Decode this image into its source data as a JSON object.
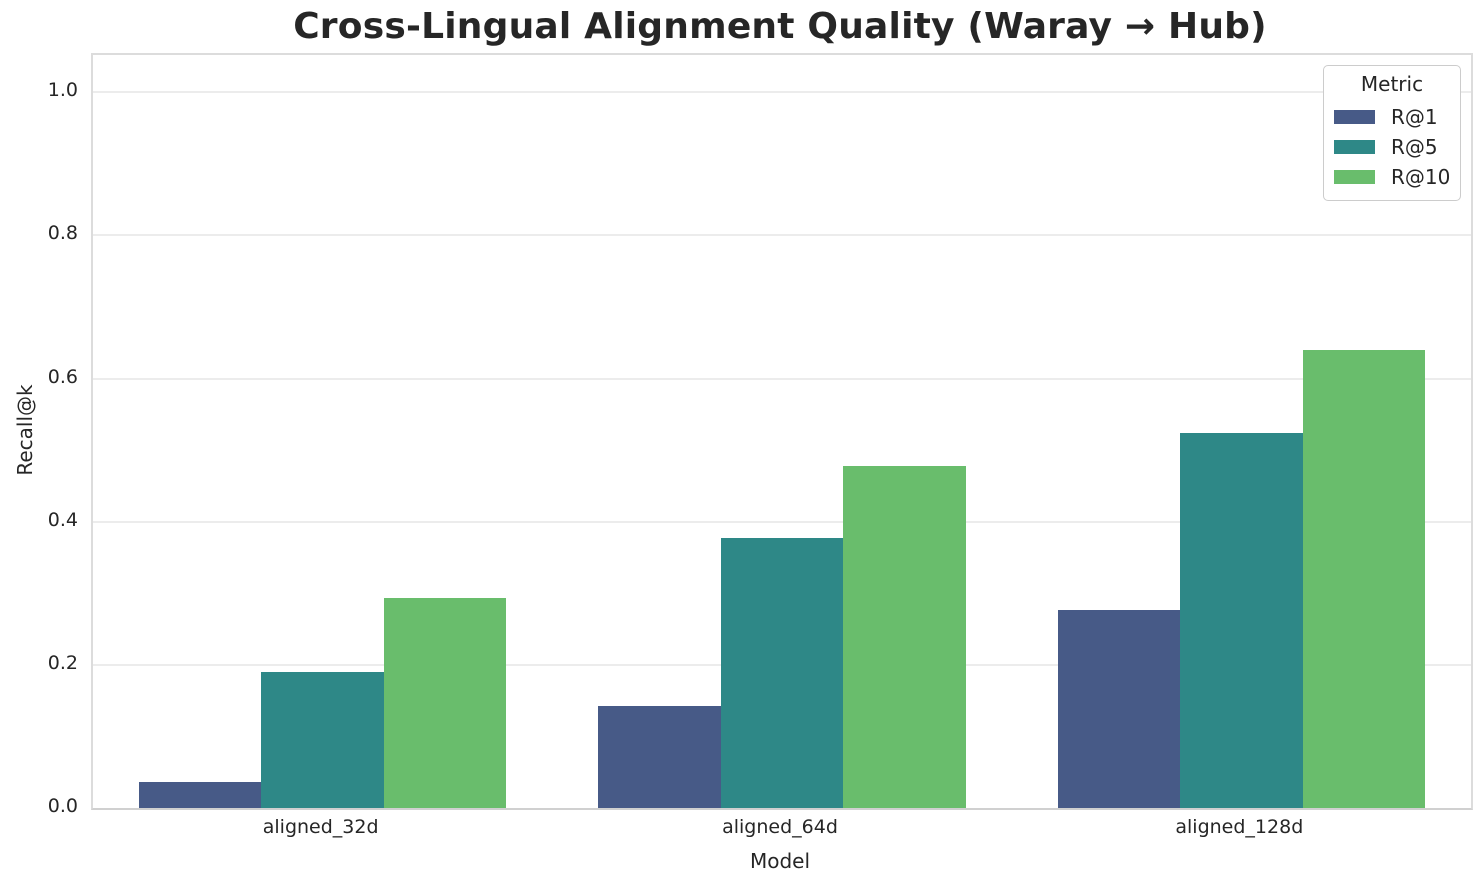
{
  "chart_data": {
    "type": "bar",
    "title": "Cross-Lingual Alignment Quality (Waray → Hub)",
    "xlabel": "Model",
    "ylabel": "Recall@k",
    "categories": [
      "aligned_32d",
      "aligned_64d",
      "aligned_128d"
    ],
    "series": [
      {
        "name": "R@1",
        "color": "#475a87",
        "values": [
          0.036,
          0.143,
          0.277
        ]
      },
      {
        "name": "R@5",
        "color": "#2e8887",
        "values": [
          0.19,
          0.377,
          0.524
        ]
      },
      {
        "name": "R@10",
        "color": "#69bd6c",
        "values": [
          0.294,
          0.478,
          0.64
        ]
      }
    ],
    "ylim": [
      0,
      1.052
    ],
    "yticks": [
      0.0,
      0.2,
      0.4,
      0.6,
      0.8,
      1.0
    ],
    "ytick_labels": [
      "0.0",
      "0.2",
      "0.4",
      "0.6",
      "0.8",
      "1.0"
    ],
    "legend_title": "Metric",
    "legend_position": "upper right",
    "grid": "horizontal"
  }
}
